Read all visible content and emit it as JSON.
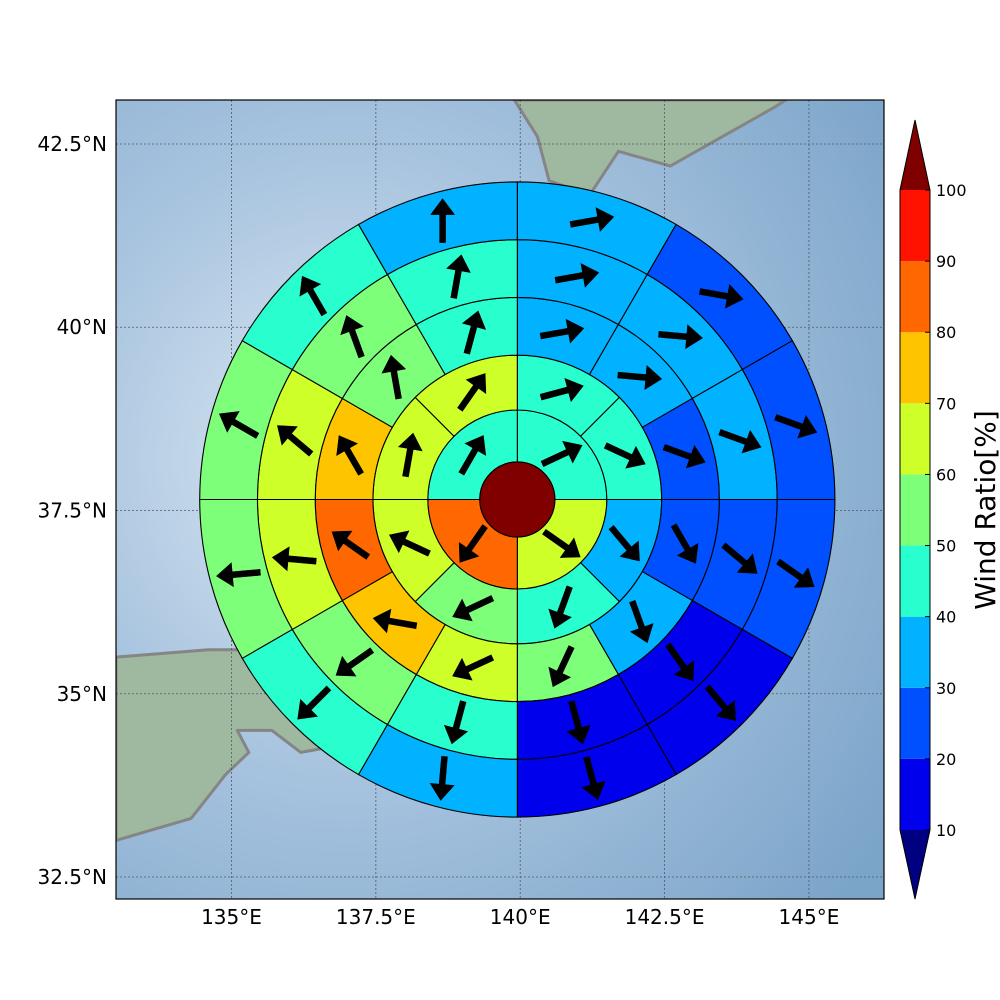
{
  "chart_data": {
    "type": "heatmap",
    "map": {
      "lon_range": [
        133.0,
        146.3
      ],
      "lat_range": [
        32.2,
        43.1
      ],
      "x_ticks": [
        {
          "value": 135.0,
          "label": "135°E"
        },
        {
          "value": 137.5,
          "label": "137.5°E"
        },
        {
          "value": 140.0,
          "label": "140°E"
        },
        {
          "value": 142.5,
          "label": "142.5°E"
        },
        {
          "value": 145.0,
          "label": "145°E"
        }
      ],
      "y_ticks": [
        {
          "value": 32.5,
          "label": "32.5°N"
        },
        {
          "value": 35.0,
          "label": "35°N"
        },
        {
          "value": 37.5,
          "label": "37.5°N"
        },
        {
          "value": 40.0,
          "label": "40°N"
        },
        {
          "value": 42.5,
          "label": "42.5°N"
        }
      ],
      "grid": true,
      "background": "shaded relief with coastlines"
    },
    "polar_grid": {
      "center": {
        "lon": 139.95,
        "lat": 37.65
      },
      "ring_radii_deg_lon": [
        0.65,
        1.55,
        2.5,
        3.5,
        4.5,
        5.5
      ],
      "sectors_per_ring": [
        1,
        4,
        8,
        8,
        12,
        12,
        12
      ]
    },
    "colorbar": {
      "label": "Wind Ratio[%]",
      "ticks": [
        10,
        20,
        30,
        40,
        50,
        60,
        70,
        80,
        90,
        100
      ],
      "bins": [
        {
          "from": 10,
          "to": 20,
          "color": "#0000ed"
        },
        {
          "from": 20,
          "to": 30,
          "color": "#0050ff"
        },
        {
          "from": 30,
          "to": 40,
          "color": "#00b2ff"
        },
        {
          "from": 40,
          "to": 50,
          "color": "#29ffce"
        },
        {
          "from": 50,
          "to": 60,
          "color": "#7dff7a"
        },
        {
          "from": 60,
          "to": 70,
          "color": "#ceff29"
        },
        {
          "from": 70,
          "to": 80,
          "color": "#ffc400"
        },
        {
          "from": 80,
          "to": 90,
          "color": "#ff6800"
        },
        {
          "from": 90,
          "to": 100,
          "color": "#ff1300"
        }
      ],
      "under_color": "#000080",
      "over_color": "#800000"
    },
    "center_cell": {
      "value": 100
    },
    "rings": [
      {
        "values": [
          44,
          65,
          85,
          45
        ],
        "arrows": [
          65,
          125,
          215,
          30
        ]
      },
      {
        "values": [
          45,
          45,
          35,
          48,
          55,
          68,
          62,
          62
        ],
        "arrows": [
          75,
          115,
          140,
          200,
          245,
          295,
          10,
          35
        ]
      },
      {
        "values": [
          35,
          30,
          25,
          25,
          35,
          55,
          65,
          75,
          80,
          75,
          58,
          45
        ],
        "arrows": [
          80,
          95,
          110,
          150,
          160,
          205,
          245,
          280,
          305,
          330,
          350,
          15
        ]
      },
      {
        "values": [
          35,
          35,
          35,
          22,
          15,
          15,
          40,
          50,
          62,
          68,
          55,
          45
        ],
        "arrows": [
          80,
          95,
          110,
          130,
          145,
          165,
          195,
          235,
          275,
          310,
          340,
          10
        ]
      },
      {
        "values": [
          35,
          28,
          20,
          20,
          18,
          15,
          35,
          45,
          55,
          55,
          45,
          35
        ],
        "arrows": [
          80,
          100,
          110,
          125,
          140,
          165,
          185,
          225,
          265,
          300,
          330,
          0
        ]
      },
      {
        "values": [
          25,
          25,
          15,
          12,
          12,
          15,
          20,
          35,
          45,
          45,
          40,
          25
        ],
        "arrows": [
          80,
          100,
          110,
          120,
          135,
          150,
          170,
          205,
          245,
          300,
          340,
          10
        ]
      }
    ]
  }
}
